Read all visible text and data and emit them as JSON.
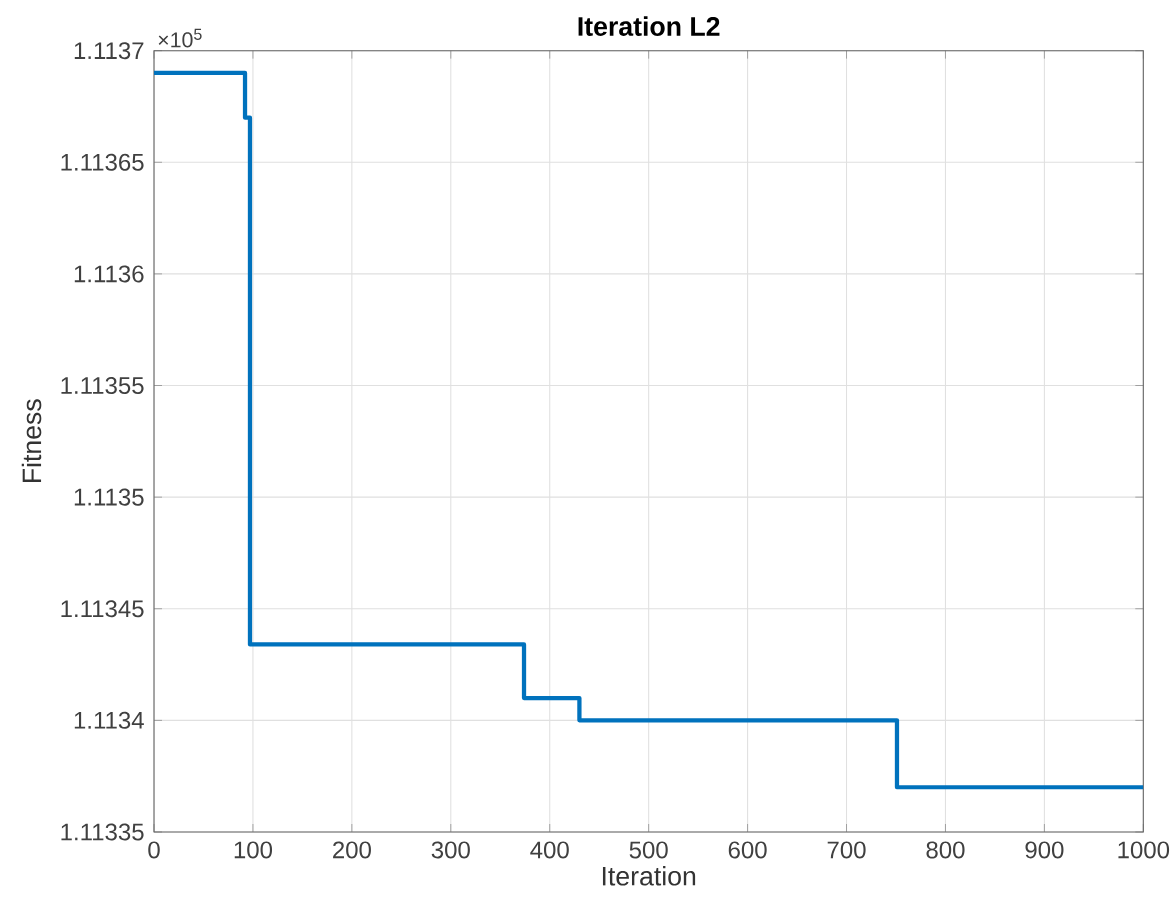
{
  "chart_data": {
    "type": "step",
    "title": "Iteration L2",
    "xlabel": "Iteration",
    "ylabel": "Fitness",
    "annotations": [
      "×10$^{5}$"
    ],
    "x": [
      0,
      92,
      97,
      374,
      430,
      751,
      1000
    ],
    "series": [
      {
        "color": "#0072bd",
        "values": [
          1.11369,
          1.11367,
          1.113434,
          1.11341,
          1.1134,
          1.11337,
          1.11337
        ]
      }
    ],
    "xlim": [
      0,
      1000
    ],
    "xticks": [
      0,
      100,
      200,
      300,
      400,
      500,
      600,
      700,
      800,
      900,
      1000
    ],
    "ylim": [
      1.11335,
      1.1137
    ],
    "yticks": [
      1.11335,
      1.1134,
      1.11345,
      1.1135,
      1.11355,
      1.1136,
      1.11365,
      1.1137
    ],
    "grid": true
  }
}
